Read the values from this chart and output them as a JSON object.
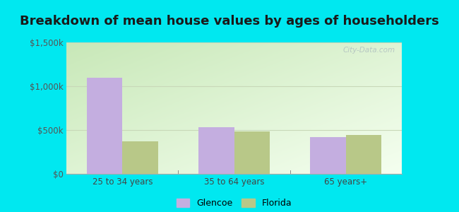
{
  "title": "Breakdown of mean house values by ages of householders",
  "categories": [
    "25 to 34 years",
    "35 to 64 years",
    "65 years+"
  ],
  "glencoe_values": [
    1100000,
    530000,
    420000
  ],
  "florida_values": [
    375000,
    480000,
    440000
  ],
  "glencoe_color": "#c4aee0",
  "florida_color": "#b8c888",
  "ylim": [
    0,
    1500000
  ],
  "yticks": [
    0,
    500000,
    1000000,
    1500000
  ],
  "ytick_labels": [
    "$0",
    "$500k",
    "$1,000k",
    "$1,500k"
  ],
  "bar_width": 0.32,
  "background_outer": "#00e8f0",
  "grid_color": "#c8d8b8",
  "legend_labels": [
    "Glencoe",
    "Florida"
  ],
  "watermark": "City-Data.com",
  "title_fontsize": 13,
  "tick_fontsize": 8.5,
  "legend_fontsize": 9
}
